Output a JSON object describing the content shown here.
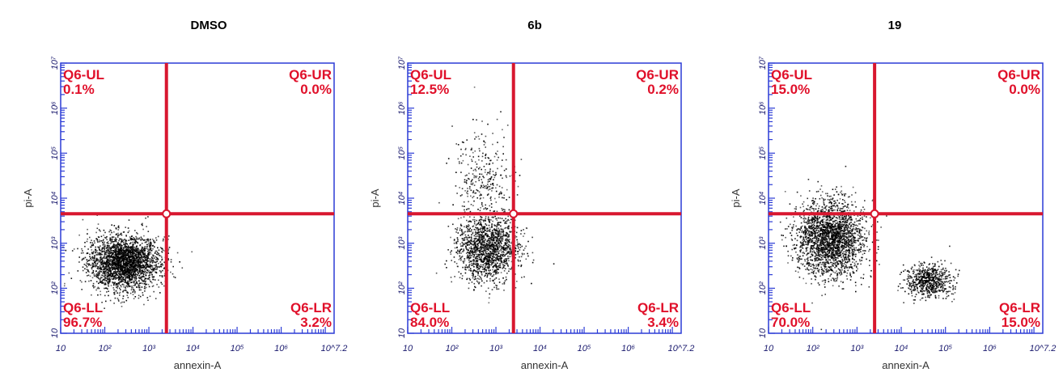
{
  "chart_data": [
    {
      "type": "scatter",
      "title": "DMSO",
      "xlabel": "annexin-A",
      "ylabel": "pi-A",
      "xscale": "log",
      "yscale": "log",
      "xlim": [
        10,
        15848932
      ],
      "ylim": [
        10,
        10000000
      ],
      "x_ticks": [
        "10",
        "10²",
        "10³",
        "10⁴",
        "10⁵",
        "10⁶",
        "10^7.2"
      ],
      "y_ticks": [
        "10",
        "10²",
        "10³",
        "10⁴",
        "10⁵",
        "10⁶",
        "10⁷"
      ],
      "gate": {
        "x": 2500,
        "y": 4500
      },
      "quadrants": [
        {
          "name": "Q6-UL",
          "percent": "0.1%"
        },
        {
          "name": "Q6-UR",
          "percent": "0.0%"
        },
        {
          "name": "Q6-LL",
          "percent": "96.7%"
        },
        {
          "name": "Q6-LR",
          "percent": "3.2%"
        }
      ],
      "clusters": [
        {
          "center": [
            270,
            380
          ],
          "spread_log": [
            0.4,
            0.3
          ],
          "points": 2600
        }
      ],
      "colors": {
        "frame": "#2b3bd6",
        "gate": "#d8172f",
        "points": "#000000"
      }
    },
    {
      "type": "scatter",
      "title": "6b",
      "xlabel": "annexin-A",
      "ylabel": "pi-A",
      "xscale": "log",
      "yscale": "log",
      "xlim": [
        10,
        15848932
      ],
      "ylim": [
        10,
        10000000
      ],
      "x_ticks": [
        "10",
        "10²",
        "10³",
        "10⁴",
        "10⁵",
        "10⁶",
        "10^7.2"
      ],
      "y_ticks": [
        "10",
        "10²",
        "10³",
        "10⁴",
        "10⁵",
        "10⁶",
        "10⁷"
      ],
      "gate": {
        "x": 2500,
        "y": 4500
      },
      "quadrants": [
        {
          "name": "Q6-UL",
          "percent": "12.5%"
        },
        {
          "name": "Q6-UR",
          "percent": "0.2%"
        },
        {
          "name": "Q6-LL",
          "percent": "84.0%"
        },
        {
          "name": "Q6-LR",
          "percent": "3.4%"
        }
      ],
      "clusters": [
        {
          "center": [
            630,
            750
          ],
          "spread_log": [
            0.35,
            0.35
          ],
          "points": 1500
        },
        {
          "center": [
            500,
            25000
          ],
          "spread_log": [
            0.35,
            0.55
          ],
          "points": 320
        }
      ],
      "colors": {
        "frame": "#2b3bd6",
        "gate": "#d8172f",
        "points": "#000000"
      }
    },
    {
      "type": "scatter",
      "title": "19",
      "xlabel": "annexin-A",
      "ylabel": "pi-A",
      "xscale": "log",
      "yscale": "log",
      "xlim": [
        10,
        15848932
      ],
      "ylim": [
        10,
        10000000
      ],
      "x_ticks": [
        "10",
        "10²",
        "10³",
        "10⁴",
        "10⁵",
        "10⁶",
        "10^7.2"
      ],
      "y_ticks": [
        "10",
        "10²",
        "10³",
        "10⁴",
        "10⁵",
        "10⁶",
        "10⁷"
      ],
      "gate": {
        "x": 2500,
        "y": 4500
      },
      "quadrants": [
        {
          "name": "Q6-UL",
          "percent": "15.0%"
        },
        {
          "name": "Q6-UR",
          "percent": "0.0%"
        },
        {
          "name": "Q6-LL",
          "percent": "70.0%"
        },
        {
          "name": "Q6-LR",
          "percent": "15.0%"
        }
      ],
      "clusters": [
        {
          "center": [
            250,
            1300
          ],
          "spread_log": [
            0.38,
            0.42
          ],
          "points": 2300
        },
        {
          "center": [
            40000,
            150
          ],
          "spread_log": [
            0.25,
            0.18
          ],
          "points": 650
        }
      ],
      "colors": {
        "frame": "#2b3bd6",
        "gate": "#d8172f",
        "points": "#000000"
      }
    }
  ]
}
